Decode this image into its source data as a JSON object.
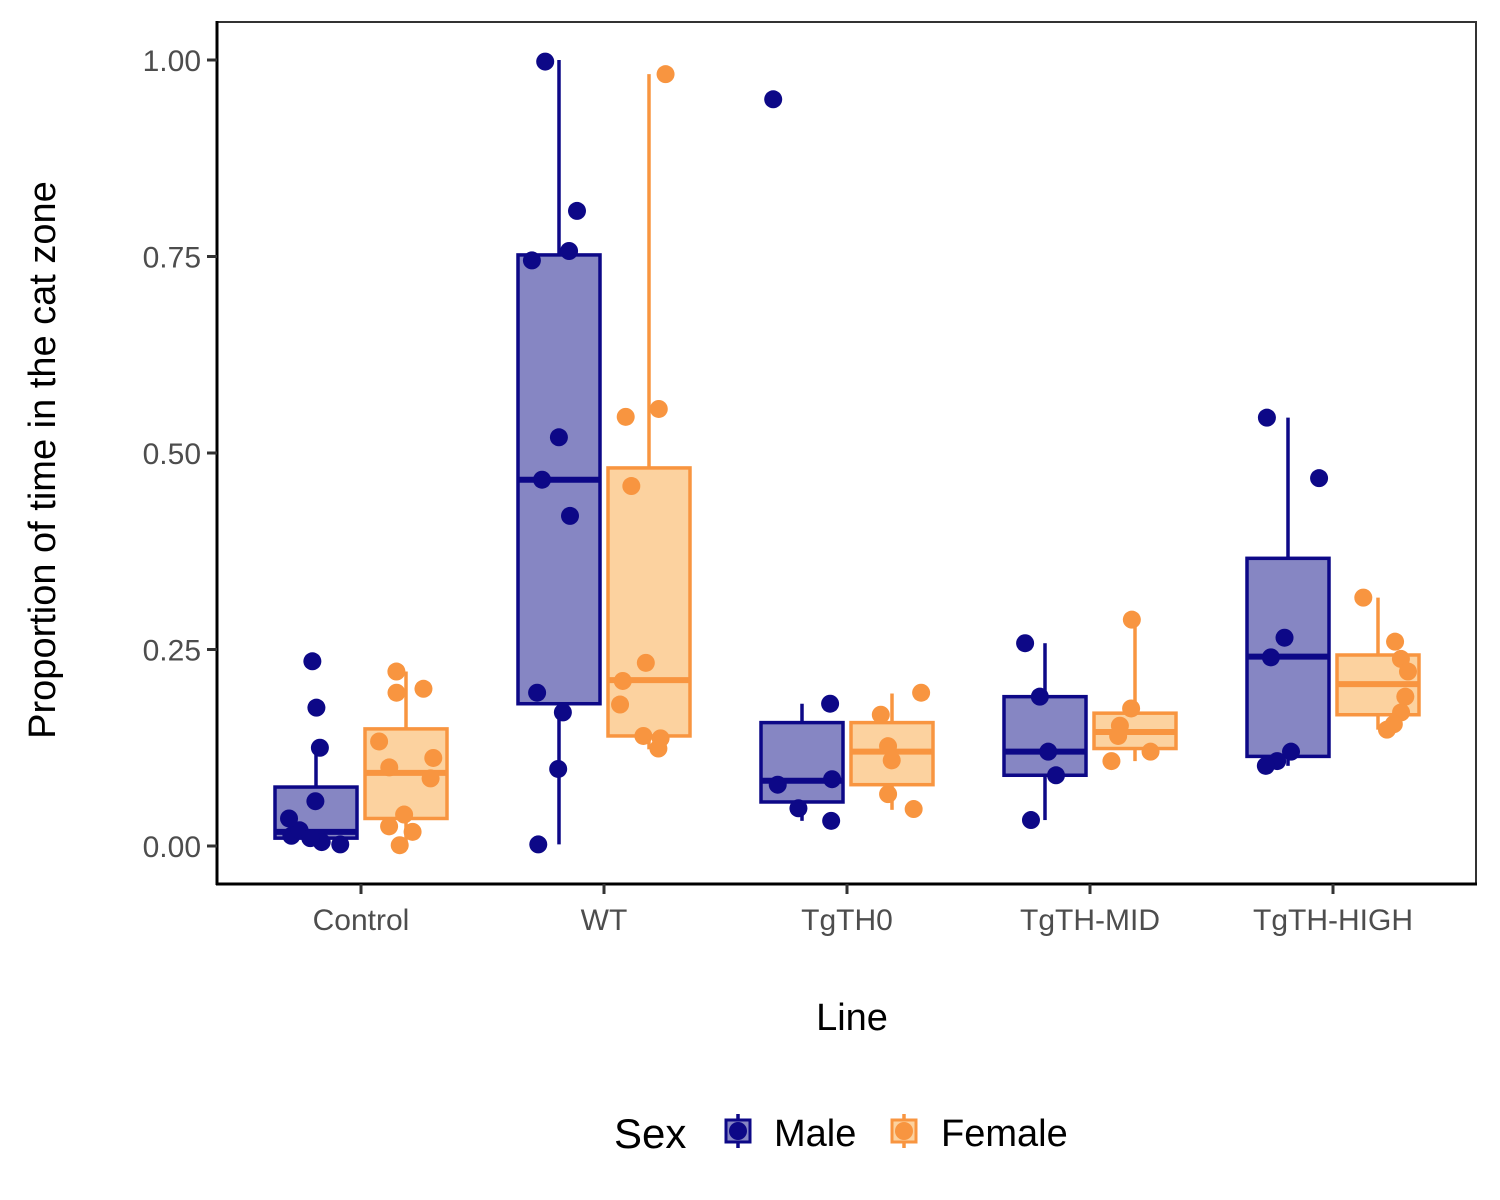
{
  "chart_data": {
    "type": "box",
    "xlabel": "Line",
    "ylabel": "Proportion of time in the cat zone",
    "ylim": [
      -0.05,
      1.05
    ],
    "yticks": [
      "0.00",
      "0.25",
      "0.50",
      "0.75",
      "1.00"
    ],
    "categories": [
      "Control",
      "WT",
      "TgTH0",
      "TgTH-MID",
      "TgTH-HIGH"
    ],
    "legend": {
      "title": "Sex",
      "position": "bottom",
      "items": [
        "Male",
        "Female"
      ]
    },
    "grid": false,
    "series": [
      {
        "name": "Male",
        "color": "#0d0887",
        "fill": "#8686c3",
        "boxes": [
          {
            "q1": 0.01,
            "median": 0.018,
            "q3": 0.075,
            "whisker_low": 0.0,
            "whisker_high": 0.125
          },
          {
            "q1": 0.181,
            "median": 0.466,
            "q3": 0.752,
            "whisker_low": 0.002,
            "whisker_high": 1.0
          },
          {
            "q1": 0.056,
            "median": 0.083,
            "q3": 0.157,
            "whisker_low": 0.032,
            "whisker_high": 0.181
          },
          {
            "q1": 0.09,
            "median": 0.12,
            "q3": 0.19,
            "whisker_low": 0.033,
            "whisker_high": 0.258
          },
          {
            "q1": 0.114,
            "median": 0.241,
            "q3": 0.366,
            "whisker_low": 0.102,
            "whisker_high": 0.545
          }
        ],
        "points": [
          [
            0.057,
            0.125,
            0.013,
            0.02,
            0.235,
            0.176,
            0.035,
            0.002,
            0.005,
            0.01
          ],
          [
            0.998,
            0.808,
            0.757,
            0.745,
            0.52,
            0.466,
            0.42,
            0.195,
            0.17,
            0.098,
            0.002
          ],
          [
            0.95,
            0.181,
            0.085,
            0.078,
            0.048,
            0.032
          ],
          [
            0.258,
            0.19,
            0.12,
            0.09,
            0.033
          ],
          [
            0.545,
            0.468,
            0.265,
            0.24,
            0.12,
            0.108,
            0.102
          ]
        ]
      },
      {
        "name": "Female",
        "color": "#f89540",
        "fill": "#fcd29f",
        "boxes": [
          {
            "q1": 0.035,
            "median": 0.093,
            "q3": 0.149,
            "whisker_low": 0.0,
            "whisker_high": 0.222
          },
          {
            "q1": 0.14,
            "median": 0.211,
            "q3": 0.481,
            "whisker_low": 0.123,
            "whisker_high": 0.982
          },
          {
            "q1": 0.078,
            "median": 0.12,
            "q3": 0.157,
            "whisker_low": 0.046,
            "whisker_high": 0.194
          },
          {
            "q1": 0.124,
            "median": 0.145,
            "q3": 0.169,
            "whisker_low": 0.108,
            "whisker_high": 0.288
          },
          {
            "q1": 0.167,
            "median": 0.206,
            "q3": 0.243,
            "whisker_low": 0.148,
            "whisker_high": 0.316
          }
        ],
        "points": [
          [
            0.2,
            0.195,
            0.222,
            0.133,
            0.112,
            0.1,
            0.086,
            0.04,
            0.025,
            0.018,
            0.001
          ],
          [
            0.982,
            0.556,
            0.546,
            0.458,
            0.233,
            0.21,
            0.18,
            0.14,
            0.137,
            0.124
          ],
          [
            0.195,
            0.167,
            0.127,
            0.109,
            0.066,
            0.047
          ],
          [
            0.288,
            0.175,
            0.153,
            0.14,
            0.12,
            0.108
          ],
          [
            0.316,
            0.26,
            0.238,
            0.222,
            0.19,
            0.17,
            0.155,
            0.148
          ]
        ]
      }
    ]
  }
}
